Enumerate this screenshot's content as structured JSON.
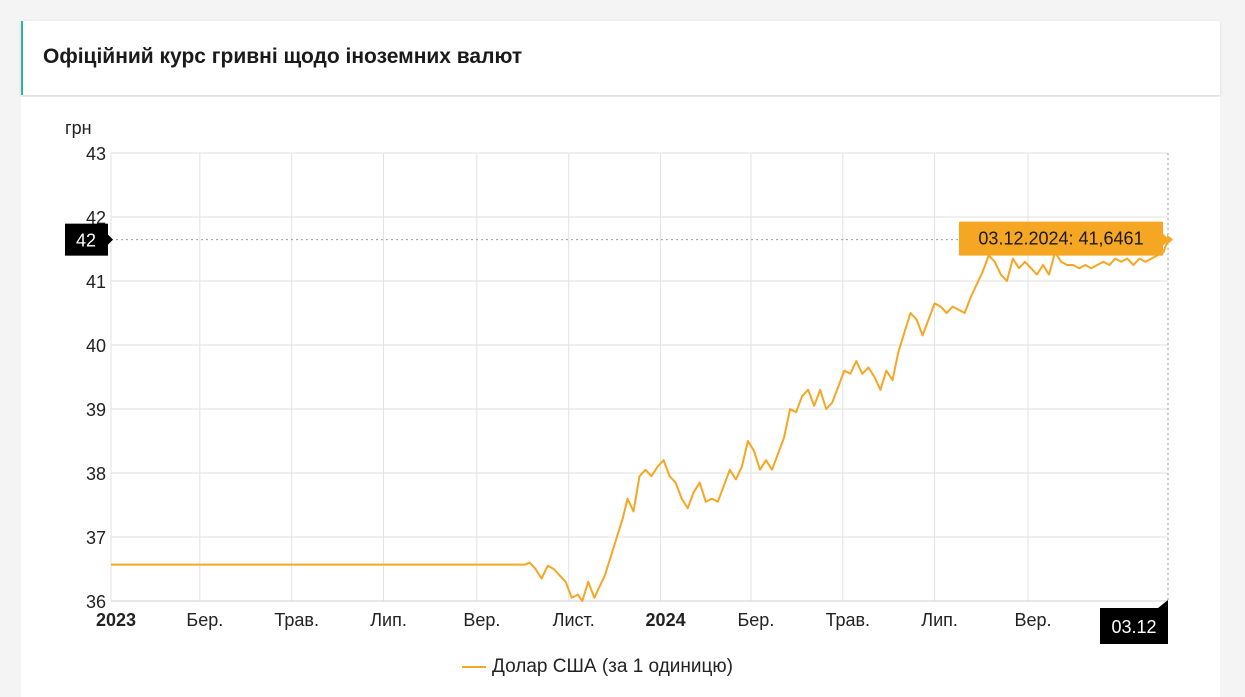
{
  "header": {
    "title": "Офіційний курс гривні щодо іноземних валют"
  },
  "chart_data": {
    "type": "line",
    "ylabel": "грн",
    "ylim": [
      36,
      43
    ],
    "y_ticks": [
      "36",
      "37",
      "38",
      "39",
      "40",
      "41",
      "42",
      "43"
    ],
    "x_ticks": [
      {
        "label": "2023",
        "bold": true
      },
      {
        "label": "Бер.",
        "bold": false
      },
      {
        "label": "Трав.",
        "bold": false
      },
      {
        "label": "Лип.",
        "bold": false
      },
      {
        "label": "Вер.",
        "bold": false
      },
      {
        "label": "Лист.",
        "bold": false
      },
      {
        "label": "2024",
        "bold": true
      },
      {
        "label": "Бер.",
        "bold": false
      },
      {
        "label": "Трав.",
        "bold": false
      },
      {
        "label": "Лип.",
        "bold": false
      },
      {
        "label": "Вер.",
        "bold": false
      }
    ],
    "x_range": [
      "2023-01-01",
      "2024-12-03"
    ],
    "y_crosshair_label": "42",
    "x_crosshair_label": "03.12",
    "tooltip": "03.12.2024: 41,6461",
    "series": [
      {
        "name": "Долар США (за 1 одиницю)",
        "color": "#f5a623",
        "points": [
          [
            "2023-01-01",
            36.5686
          ],
          [
            "2023-10-03",
            36.5686
          ],
          [
            "2023-10-06",
            36.6
          ],
          [
            "2023-10-10",
            36.5
          ],
          [
            "2023-10-14",
            36.35
          ],
          [
            "2023-10-18",
            36.55
          ],
          [
            "2023-10-22",
            36.5
          ],
          [
            "2023-10-26",
            36.4
          ],
          [
            "2023-10-30",
            36.3
          ],
          [
            "2023-11-03",
            36.05
          ],
          [
            "2023-11-07",
            36.1
          ],
          [
            "2023-11-10",
            36.0
          ],
          [
            "2023-11-14",
            36.3
          ],
          [
            "2023-11-18",
            36.05
          ],
          [
            "2023-11-21",
            36.2
          ],
          [
            "2023-11-25",
            36.4
          ],
          [
            "2023-11-29",
            36.7
          ],
          [
            "2023-12-03",
            37.0
          ],
          [
            "2023-12-07",
            37.3
          ],
          [
            "2023-12-10",
            37.6
          ],
          [
            "2023-12-14",
            37.4
          ],
          [
            "2023-12-18",
            37.95
          ],
          [
            "2023-12-22",
            38.05
          ],
          [
            "2023-12-26",
            37.95
          ],
          [
            "2023-12-30",
            38.1
          ],
          [
            "2024-01-03",
            38.2
          ],
          [
            "2024-01-07",
            37.95
          ],
          [
            "2024-01-11",
            37.85
          ],
          [
            "2024-01-15",
            37.6
          ],
          [
            "2024-01-19",
            37.45
          ],
          [
            "2024-01-23",
            37.7
          ],
          [
            "2024-01-27",
            37.85
          ],
          [
            "2024-01-31",
            37.55
          ],
          [
            "2024-02-04",
            37.6
          ],
          [
            "2024-02-08",
            37.55
          ],
          [
            "2024-02-12",
            37.8
          ],
          [
            "2024-02-16",
            38.05
          ],
          [
            "2024-02-20",
            37.9
          ],
          [
            "2024-02-24",
            38.1
          ],
          [
            "2024-02-28",
            38.5
          ],
          [
            "2024-03-03",
            38.35
          ],
          [
            "2024-03-07",
            38.05
          ],
          [
            "2024-03-11",
            38.2
          ],
          [
            "2024-03-15",
            38.05
          ],
          [
            "2024-03-19",
            38.3
          ],
          [
            "2024-03-23",
            38.55
          ],
          [
            "2024-03-27",
            39.0
          ],
          [
            "2024-03-31",
            38.95
          ],
          [
            "2024-04-04",
            39.2
          ],
          [
            "2024-04-08",
            39.3
          ],
          [
            "2024-04-12",
            39.05
          ],
          [
            "2024-04-16",
            39.3
          ],
          [
            "2024-04-20",
            39.0
          ],
          [
            "2024-04-24",
            39.1
          ],
          [
            "2024-04-28",
            39.35
          ],
          [
            "2024-05-02",
            39.6
          ],
          [
            "2024-05-06",
            39.55
          ],
          [
            "2024-05-10",
            39.75
          ],
          [
            "2024-05-14",
            39.55
          ],
          [
            "2024-05-18",
            39.65
          ],
          [
            "2024-05-22",
            39.5
          ],
          [
            "2024-05-26",
            39.3
          ],
          [
            "2024-05-30",
            39.6
          ],
          [
            "2024-06-03",
            39.45
          ],
          [
            "2024-06-07",
            39.9
          ],
          [
            "2024-06-11",
            40.2
          ],
          [
            "2024-06-15",
            40.5
          ],
          [
            "2024-06-19",
            40.4
          ],
          [
            "2024-06-23",
            40.15
          ],
          [
            "2024-06-27",
            40.4
          ],
          [
            "2024-07-01",
            40.65
          ],
          [
            "2024-07-05",
            40.6
          ],
          [
            "2024-07-09",
            40.5
          ],
          [
            "2024-07-13",
            40.6
          ],
          [
            "2024-07-17",
            40.55
          ],
          [
            "2024-07-21",
            40.5
          ],
          [
            "2024-07-25",
            40.75
          ],
          [
            "2024-07-29",
            40.95
          ],
          [
            "2024-08-02",
            41.15
          ],
          [
            "2024-08-06",
            41.4
          ],
          [
            "2024-08-10",
            41.3
          ],
          [
            "2024-08-14",
            41.1
          ],
          [
            "2024-08-18",
            41.0
          ],
          [
            "2024-08-22",
            41.35
          ],
          [
            "2024-08-26",
            41.2
          ],
          [
            "2024-08-30",
            41.3
          ],
          [
            "2024-09-03",
            41.2
          ],
          [
            "2024-09-07",
            41.1
          ],
          [
            "2024-09-11",
            41.25
          ],
          [
            "2024-09-15",
            41.1
          ],
          [
            "2024-09-19",
            41.45
          ],
          [
            "2024-09-23",
            41.3
          ],
          [
            "2024-09-27",
            41.25
          ],
          [
            "2024-10-01",
            41.25
          ],
          [
            "2024-10-05",
            41.2
          ],
          [
            "2024-10-09",
            41.25
          ],
          [
            "2024-10-13",
            41.2
          ],
          [
            "2024-10-17",
            41.25
          ],
          [
            "2024-10-21",
            41.3
          ],
          [
            "2024-10-25",
            41.25
          ],
          [
            "2024-10-29",
            41.35
          ],
          [
            "2024-11-02",
            41.3
          ],
          [
            "2024-11-06",
            41.35
          ],
          [
            "2024-11-10",
            41.25
          ],
          [
            "2024-11-14",
            41.35
          ],
          [
            "2024-11-18",
            41.3
          ],
          [
            "2024-11-22",
            41.35
          ],
          [
            "2024-11-26",
            41.4
          ],
          [
            "2024-11-30",
            41.45
          ],
          [
            "2024-12-03",
            41.6461
          ]
        ]
      }
    ]
  }
}
